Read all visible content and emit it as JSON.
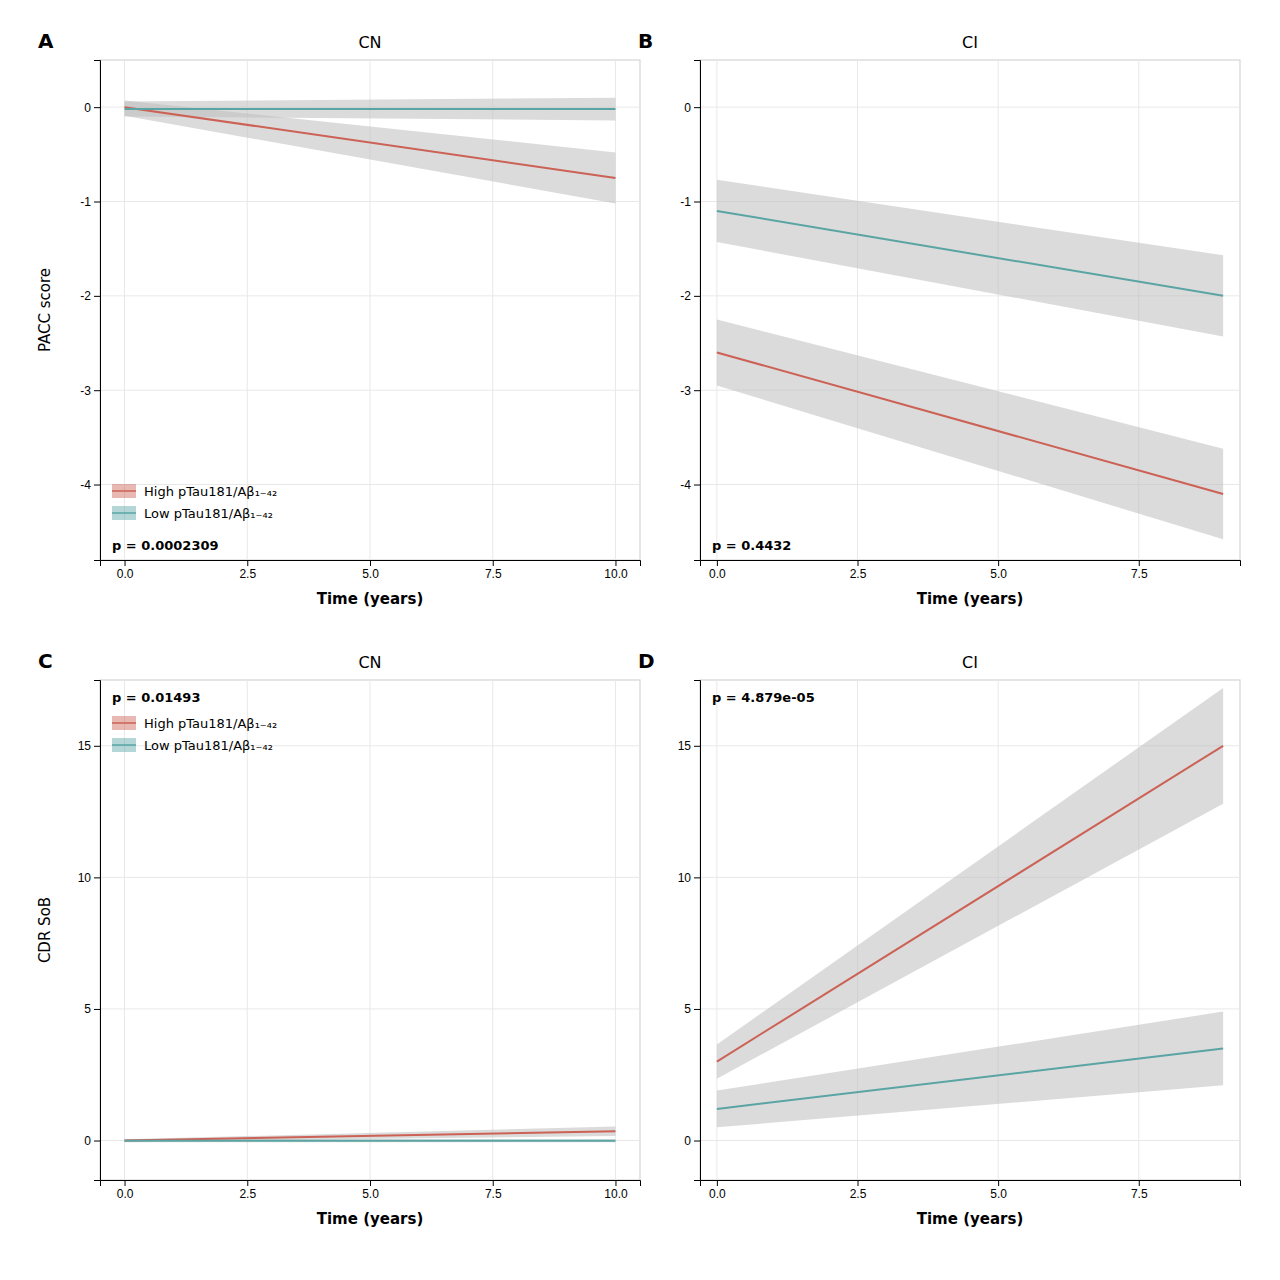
{
  "chart_data": [
    {
      "type": "line",
      "panel_label": "A",
      "title": "CN",
      "xlabel": "Time (years)",
      "ylabel": "PACC score",
      "xlim": [
        -0.5,
        10.5
      ],
      "ylim": [
        -4.8,
        0.5
      ],
      "xticks": [
        {
          "value": 0.0,
          "label": "0.0"
        },
        2.5,
        {
          "value": 5.0,
          "label": "5.0"
        },
        7.5,
        {
          "value": 10.0,
          "label": "10.0"
        }
      ],
      "yticks": [
        0,
        -1,
        -2,
        -3,
        -4
      ],
      "grid": true,
      "legend": "lower left",
      "annotations": [
        {
          "text": "p = 0.0002309",
          "position": "lower left"
        }
      ],
      "series": [
        {
          "name": "High pTau181/Aβ₁₋₄₂",
          "color": "#CC6155",
          "x": [
            0,
            10
          ],
          "values": [
            0.0,
            -0.75
          ],
          "lower": [
            -0.09,
            -1.02
          ],
          "upper": [
            0.07,
            -0.48
          ]
        },
        {
          "name": "Low pTau181/Aβ₁₋₄₂",
          "color": "#5AA4A4",
          "x": [
            0,
            10
          ],
          "values": [
            -0.02,
            -0.02
          ],
          "lower": [
            -0.1,
            -0.14
          ],
          "upper": [
            0.06,
            0.1
          ]
        }
      ]
    },
    {
      "type": "line",
      "panel_label": "B",
      "title": "CI",
      "xlabel": "Time (years)",
      "xlim": [
        -0.3,
        9.3
      ],
      "ylim": [
        -4.8,
        0.5
      ],
      "xticks": [
        {
          "value": 0.0,
          "label": "0.0"
        },
        2.5,
        {
          "value": 5.0,
          "label": "5.0"
        },
        7.5
      ],
      "yticks": [
        0,
        -1,
        -2,
        -3,
        -4
      ],
      "grid": true,
      "legend": false,
      "annotations": [
        {
          "text": "p = 0.4432",
          "position": "lower left"
        }
      ],
      "series": [
        {
          "name": "High pTau181/Aβ₁₋₄₂",
          "color": "#CC6155",
          "x": [
            0,
            9
          ],
          "values": [
            -2.6,
            -4.1
          ],
          "lower": [
            -2.95,
            -4.58
          ],
          "upper": [
            -2.25,
            -3.62
          ]
        },
        {
          "name": "Low pTau181/Aβ₁₋₄₂",
          "color": "#5AA4A4",
          "x": [
            0,
            9
          ],
          "values": [
            -1.1,
            -2.0
          ],
          "lower": [
            -1.43,
            -2.43
          ],
          "upper": [
            -0.77,
            -1.57
          ]
        }
      ]
    },
    {
      "type": "line",
      "panel_label": "C",
      "title": "CN",
      "xlabel": "Time (years)",
      "ylabel": "CDR SoB",
      "xlim": [
        -0.5,
        10.5
      ],
      "ylim": [
        -1.5,
        17.5
      ],
      "xticks": [
        {
          "value": 0.0,
          "label": "0.0"
        },
        2.5,
        {
          "value": 5.0,
          "label": "5.0"
        },
        7.5,
        {
          "value": 10.0,
          "label": "10.0"
        }
      ],
      "yticks": [
        0,
        5,
        10,
        15
      ],
      "grid": true,
      "legend": "upper left",
      "annotations": [
        {
          "text": "p = 0.01493",
          "position": "upper left"
        }
      ],
      "series": [
        {
          "name": "High pTau181/Aβ₁₋₄₂",
          "color": "#CC6155",
          "x": [
            0,
            10
          ],
          "values": [
            0.0,
            0.35
          ],
          "lower": [
            -0.05,
            0.17
          ],
          "upper": [
            0.05,
            0.53
          ]
        },
        {
          "name": "Low pTau181/Aβ₁₋₄₂",
          "color": "#5AA4A4",
          "x": [
            0,
            10
          ],
          "values": [
            -0.01,
            -0.01
          ],
          "lower": [
            -0.07,
            -0.07
          ],
          "upper": [
            0.05,
            0.05
          ]
        }
      ]
    },
    {
      "type": "line",
      "panel_label": "D",
      "title": "CI",
      "xlabel": "Time (years)",
      "xlim": [
        -0.3,
        9.3
      ],
      "ylim": [
        -1.5,
        17.5
      ],
      "xticks": [
        {
          "value": 0.0,
          "label": "0.0"
        },
        2.5,
        {
          "value": 5.0,
          "label": "5.0"
        },
        7.5
      ],
      "yticks": [
        0,
        5,
        10,
        15
      ],
      "grid": true,
      "legend": false,
      "annotations": [
        {
          "text": "p = 4.879e-05",
          "position": "upper left"
        }
      ],
      "series": [
        {
          "name": "High pTau181/Aβ₁₋₄₂",
          "color": "#CC6155",
          "x": [
            0,
            9
          ],
          "values": [
            3.0,
            15.0
          ],
          "lower": [
            2.35,
            12.8
          ],
          "upper": [
            3.65,
            17.2
          ]
        },
        {
          "name": "Low pTau181/Aβ₁₋₄₂",
          "color": "#5AA4A4",
          "x": [
            0,
            9
          ],
          "values": [
            1.2,
            3.5
          ],
          "lower": [
            0.5,
            2.1
          ],
          "upper": [
            1.9,
            4.9
          ]
        }
      ]
    }
  ]
}
